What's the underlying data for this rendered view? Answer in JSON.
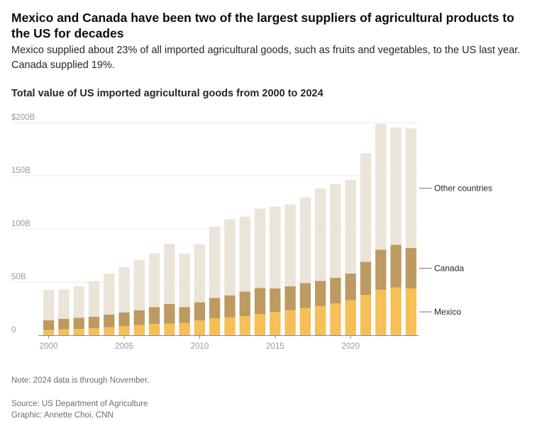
{
  "header": {
    "title": "Mexico and Canada have been two of the largest suppliers of agricultural products to the US for decades",
    "subtitle": "Mexico supplied about 23% of all imported agricultural goods, such as fruits and vegetables, to the US last year. Canada supplied 19%.",
    "chart_title": "Total value of US imported agricultural goods from 2000 to 2024"
  },
  "footer": {
    "note": "Note: 2024 data is through November.",
    "source": "Source: US Department of Agriculture",
    "credit": "Graphic: Annette Choi, CNN"
  },
  "colors": {
    "mexico": "#f6bf57",
    "canada": "#bd9a62",
    "other": "#ebe4d9",
    "grid": "#e9e9e9",
    "axis": "#8c8c8c",
    "leader": "#7a7a7a"
  },
  "chart_data": {
    "type": "bar",
    "stacked": true,
    "title": "Total value of US imported agricultural goods from 2000 to 2024",
    "categories": [
      2000,
      2001,
      2002,
      2003,
      2004,
      2005,
      2006,
      2007,
      2008,
      2009,
      2010,
      2011,
      2012,
      2013,
      2014,
      2015,
      2016,
      2017,
      2018,
      2019,
      2020,
      2021,
      2022,
      2023,
      2024
    ],
    "x_ticks": [
      2000,
      2005,
      2010,
      2015,
      2020
    ],
    "y_ticks": [
      0,
      50,
      100,
      150,
      200
    ],
    "y_tick_labels": [
      "0",
      "50B",
      "100B",
      "150B",
      "$200B"
    ],
    "ylim": [
      0,
      200
    ],
    "grid": true,
    "legend_placement": "right, direct labels",
    "series": [
      {
        "name": "Mexico",
        "values": [
          5,
          5.5,
          6,
          6.5,
          7.5,
          8.5,
          9.5,
          10.5,
          11,
          11.5,
          14,
          16,
          17,
          18,
          20,
          22,
          23.5,
          25.5,
          27.5,
          30,
          33,
          38,
          43,
          45,
          44
        ]
      },
      {
        "name": "Canada",
        "values": [
          9,
          10,
          10.5,
          11,
          12,
          13,
          14,
          16,
          18.5,
          15,
          17,
          19,
          20.5,
          23,
          24.5,
          22,
          22.5,
          23.5,
          23.5,
          24,
          25,
          31,
          37.5,
          40,
          38
        ]
      },
      {
        "name": "Other countries",
        "values": [
          28.5,
          27.5,
          29.5,
          33.5,
          38.5,
          42.5,
          47.5,
          50.5,
          56.5,
          50.5,
          54.5,
          67,
          71.5,
          70.5,
          74.5,
          77,
          77,
          80.5,
          87,
          88,
          88,
          102,
          118.5,
          110.5,
          112.5
        ]
      }
    ],
    "legend": [
      "Other countries",
      "Canada",
      "Mexico"
    ]
  }
}
